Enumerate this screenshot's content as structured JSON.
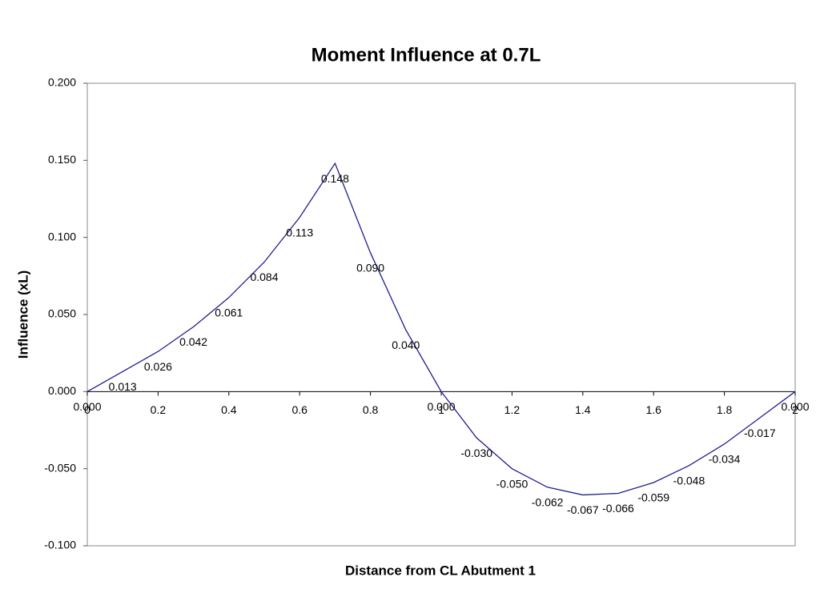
{
  "chart_data": {
    "type": "line",
    "title": "Moment Influence at 0.7L",
    "x_label": "Distance from CL Abutment 1",
    "y_label": "Influence (xL)",
    "x": [
      0,
      0.1,
      0.2,
      0.3,
      0.4,
      0.5,
      0.6,
      0.7,
      0.8,
      0.9,
      1,
      1.1,
      1.2,
      1.3,
      1.4,
      1.5,
      1.6,
      1.7,
      1.8,
      1.9,
      2
    ],
    "series": [
      {
        "name": "Moment Influence",
        "color": "#1f1f8f",
        "values": [
          0,
          0.013,
          0.026,
          0.042,
          0.061,
          0.084,
          0.113,
          0.148,
          0.09,
          0.04,
          0,
          -0.03,
          -0.05,
          -0.062,
          -0.067,
          -0.066,
          -0.059,
          -0.048,
          -0.034,
          -0.017,
          0
        ],
        "value_labels": [
          "0.000",
          "0.013",
          "0.026",
          "0.042",
          "0.061",
          "0.084",
          "0.113",
          "0.148",
          "0.090",
          "0.040",
          "0.000",
          "-0.030",
          "-0.050",
          "-0.062",
          "-0.067",
          "-0.066",
          "-0.059",
          "-0.048",
          "-0.034",
          "-0.017",
          "0.000"
        ]
      }
    ],
    "xlim": [
      0,
      2
    ],
    "xticks": [
      0,
      0.2,
      0.4,
      0.6,
      0.8,
      1,
      1.2,
      1.4,
      1.6,
      1.8,
      2
    ],
    "ylim": [
      -0.1,
      0.2
    ],
    "yticks": [
      {
        "value": -0.1,
        "label": "-0.100"
      },
      {
        "value": -0.05,
        "label": "-0.050"
      },
      {
        "value": 0,
        "label": "0.000"
      },
      {
        "value": 0.05,
        "label": "0.050"
      },
      {
        "value": 0.1,
        "label": "0.100"
      },
      {
        "value": 0.15,
        "label": "0.150"
      },
      {
        "value": 0.2,
        "label": "0.200"
      }
    ],
    "grid": false
  }
}
